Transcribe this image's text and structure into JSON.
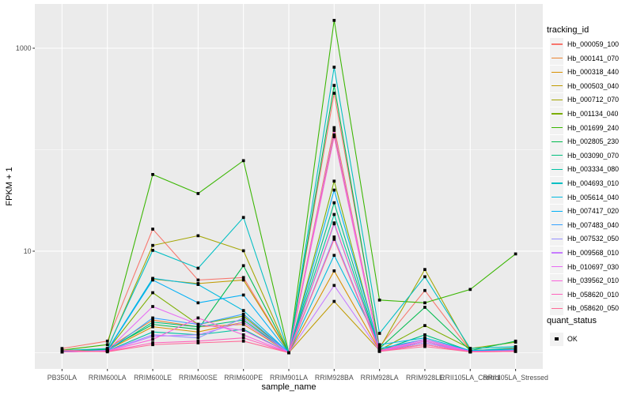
{
  "chart": {
    "y_axis_title": "FPKM + 1",
    "x_axis_title": "sample_name",
    "legend_title": "tracking_id",
    "legend2_title": "quant_status",
    "legend2_item": "OK"
  },
  "chart_data": {
    "type": "line",
    "title": "",
    "xlabel": "sample_name",
    "ylabel": "FPKM + 1",
    "y_scale": "log10",
    "y_tick_labels": [
      "10",
      "1000"
    ],
    "y_tick_values": [
      10,
      1000
    ],
    "y_minor_values": [
      1,
      100
    ],
    "ylim_log10": [
      -0.16,
      3.436
    ],
    "grid": true,
    "panel_bg": "#EBEBEB",
    "grid_color": "#FFFFFF",
    "point_color": "#000000",
    "legend_position": "right",
    "quant_status_legend": {
      "title": "quant_status",
      "items": [
        "OK"
      ]
    },
    "categories": [
      "PB350LA",
      "RRIM600LA",
      "RRIM600LE",
      "RRIM600SE",
      "RRIM600PE",
      "RRIM901LA",
      "RRIM928BA",
      "RRIM928LA",
      "RRIM928LE",
      "RRII105LA_Control",
      "RRII105LA_Stressed"
    ],
    "series": [
      {
        "name": "Hb_000059_100",
        "color": "#F8766D",
        "values": [
          1.1,
          1.3,
          16.5,
          5.2,
          5.5,
          1.0,
          360,
          1.15,
          4.1,
          1.05,
          1.1
        ]
      },
      {
        "name": "Hb_000141_070",
        "color": "#EA8331",
        "values": [
          1.03,
          1.1,
          2.1,
          1.8,
          1.9,
          1.0,
          165,
          1.06,
          1.35,
          1.03,
          1.05
        ]
      },
      {
        "name": "Hb_000318_440",
        "color": "#D89000",
        "values": [
          1.02,
          1.06,
          1.8,
          1.6,
          2.0,
          1.0,
          6.4,
          1.05,
          1.25,
          1.02,
          1.04
        ]
      },
      {
        "name": "Hb_000503_040",
        "color": "#C09B00",
        "values": [
          1.02,
          1.05,
          5.3,
          4.8,
          5.2,
          1.0,
          3.2,
          1.05,
          1.2,
          1.02,
          1.03
        ]
      },
      {
        "name": "Hb_000712_070",
        "color": "#A3A500",
        "values": [
          1.04,
          1.08,
          11.4,
          14.2,
          10.1,
          1.0,
          140,
          1.1,
          6.6,
          1.05,
          1.08
        ]
      },
      {
        "name": "Hb_001134_040",
        "color": "#7CAE00",
        "values": [
          1.02,
          1.06,
          3.9,
          1.9,
          2.3,
          1.0,
          49,
          1.06,
          1.85,
          1.1,
          1.27
        ]
      },
      {
        "name": "Hb_001699_240",
        "color": "#39B600",
        "values": [
          1.06,
          1.2,
          57,
          37,
          78,
          1.0,
          1880,
          3.3,
          3.1,
          4.2,
          9.4
        ]
      },
      {
        "name": "Hb_002805_230",
        "color": "#00BB4E",
        "values": [
          1.03,
          1.08,
          1.9,
          1.7,
          7.2,
          1.0,
          430,
          1.1,
          2.8,
          1.05,
          1.3
        ]
      },
      {
        "name": "Hb_003090_070",
        "color": "#00BF7D",
        "values": [
          1.02,
          1.05,
          2.0,
          1.8,
          2.1,
          1.0,
          30,
          1.05,
          1.5,
          1.04,
          1.12
        ]
      },
      {
        "name": "Hb_003334_080",
        "color": "#00C1A3",
        "values": [
          1.02,
          1.04,
          1.6,
          1.5,
          1.7,
          1.0,
          23,
          1.04,
          1.3,
          1.02,
          1.06
        ]
      },
      {
        "name": "Hb_004693_010",
        "color": "#00BFC4",
        "values": [
          1.05,
          1.1,
          10.2,
          6.8,
          21.5,
          1.0,
          650,
          1.55,
          5.6,
          1.1,
          1.15
        ]
      },
      {
        "name": "Hb_005614_040",
        "color": "#00BAE0",
        "values": [
          1.03,
          1.06,
          5.4,
          4.7,
          2.6,
          1.0,
          9.1,
          1.2,
          1.4,
          1.05,
          1.08
        ]
      },
      {
        "name": "Hb_007417_020",
        "color": "#00B0F6",
        "values": [
          1.02,
          1.05,
          5.2,
          3.1,
          3.7,
          1.0,
          40,
          1.1,
          1.35,
          1.04,
          1.06
        ]
      },
      {
        "name": "Hb_007483_040",
        "color": "#35A2FF",
        "values": [
          1.02,
          1.04,
          2.2,
          1.9,
          2.4,
          1.0,
          18.6,
          1.05,
          1.25,
          1.03,
          1.05
        ]
      },
      {
        "name": "Hb_007532_050",
        "color": "#9590FF",
        "values": [
          1.02,
          1.04,
          1.5,
          1.4,
          2.2,
          1.0,
          13.8,
          1.04,
          1.3,
          1.02,
          1.04
        ]
      },
      {
        "name": "Hb_009568_010",
        "color": "#C77CFF",
        "values": [
          1.02,
          1.04,
          1.45,
          1.5,
          2.0,
          1.0,
          4.6,
          1.04,
          1.25,
          1.02,
          1.04
        ]
      },
      {
        "name": "Hb_010697_030",
        "color": "#E76BF3",
        "values": [
          1.02,
          1.05,
          2.85,
          1.9,
          1.66,
          1.0,
          155,
          1.05,
          1.35,
          1.03,
          1.05
        ]
      },
      {
        "name": "Hb_039562_010",
        "color": "#FA62DB",
        "values": [
          1.02,
          1.04,
          1.35,
          2.2,
          1.5,
          1.0,
          134,
          1.04,
          1.3,
          1.02,
          1.04
        ]
      },
      {
        "name": "Hb_058620_010",
        "color": "#FF62BC",
        "values": [
          1.02,
          1.03,
          1.25,
          1.3,
          1.4,
          1.0,
          19,
          1.03,
          1.2,
          1.02,
          1.03
        ]
      },
      {
        "name": "Hb_058620_050",
        "color": "#FF6A98",
        "values": [
          1.06,
          1.02,
          1.2,
          1.25,
          1.3,
          1.0,
          13.1,
          1.03,
          1.15,
          1.02,
          1.03
        ]
      }
    ]
  }
}
